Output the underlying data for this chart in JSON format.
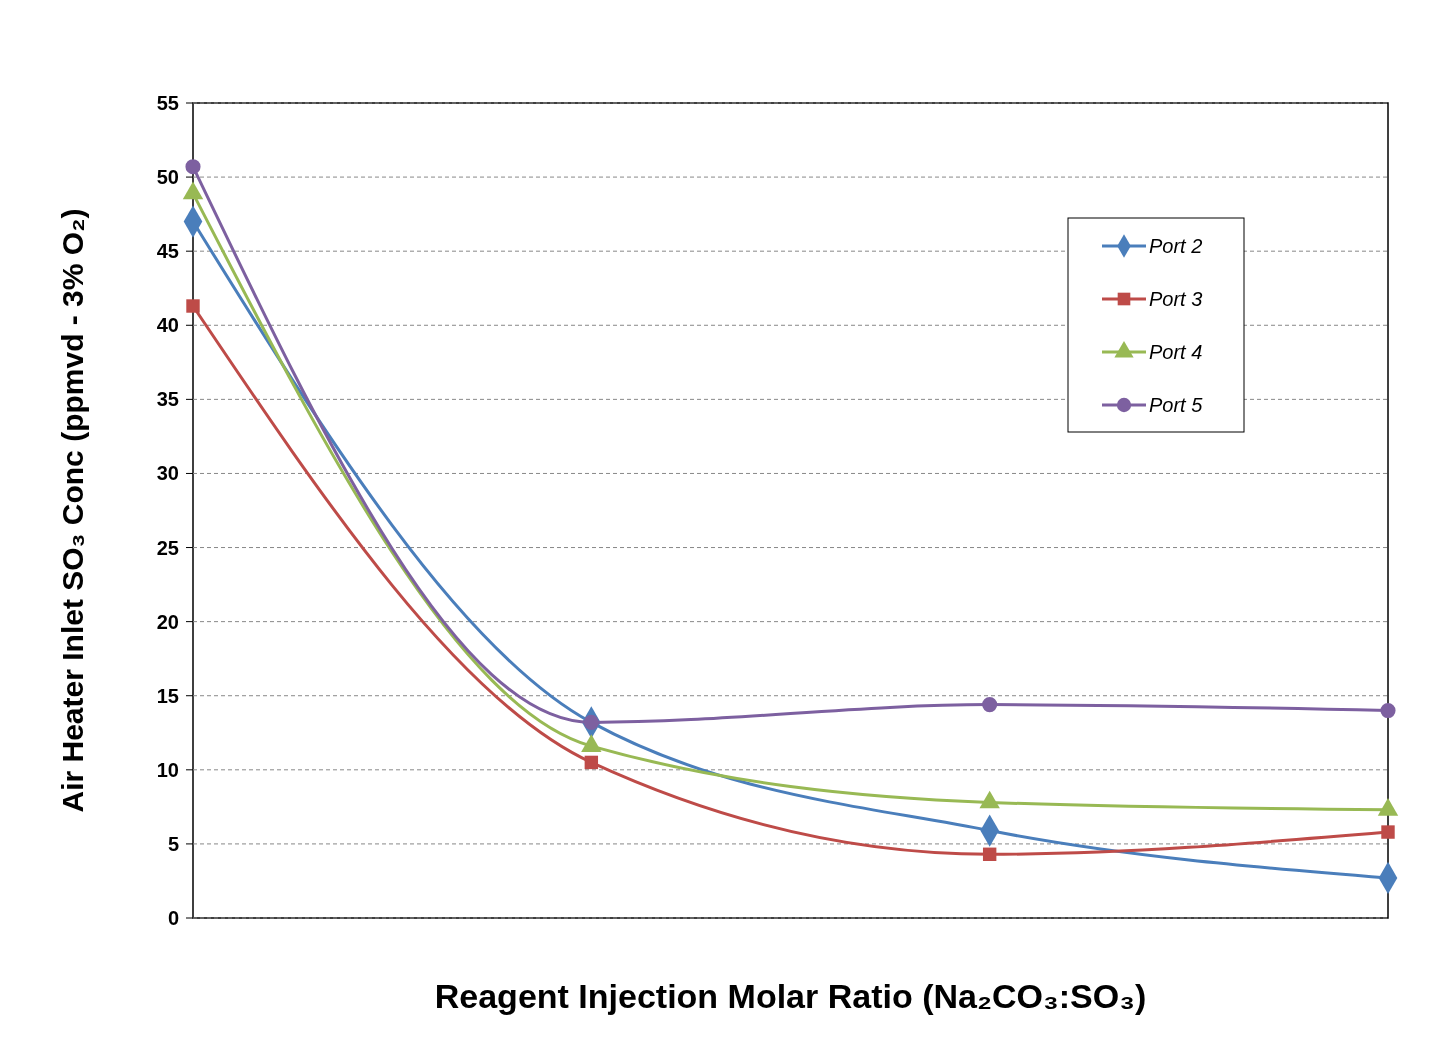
{
  "chart_data": {
    "type": "line",
    "xlabel": "Reagent Injection Molar Ratio (Na₂CO₃:SO₃)",
    "ylabel": "Air Heater Inlet SO₃ Conc (ppmvd - 3% O₂)",
    "categories": [
      null,
      null,
      null,
      null
    ],
    "series": [
      {
        "name": "Port 2",
        "color": "#4a7ebb",
        "marker": "diamond",
        "values": [
          47,
          13.2,
          5.9,
          2.7
        ]
      },
      {
        "name": "Port 3",
        "color": "#be4b48",
        "marker": "square",
        "values": [
          41.3,
          10.5,
          4.3,
          5.8
        ]
      },
      {
        "name": "Port 4",
        "color": "#98b954",
        "marker": "triangle",
        "values": [
          48.9,
          11.6,
          7.8,
          7.3
        ]
      },
      {
        "name": "Port 5",
        "color": "#7d60a0",
        "marker": "circle",
        "values": [
          50.7,
          13.2,
          14.4,
          14.0
        ]
      }
    ],
    "ylim": [
      0,
      55
    ],
    "yticks": [
      0,
      5,
      10,
      15,
      20,
      25,
      30,
      35,
      40,
      45,
      50,
      55
    ],
    "grid": "y",
    "legend": "top right",
    "tick_labels": "y"
  }
}
